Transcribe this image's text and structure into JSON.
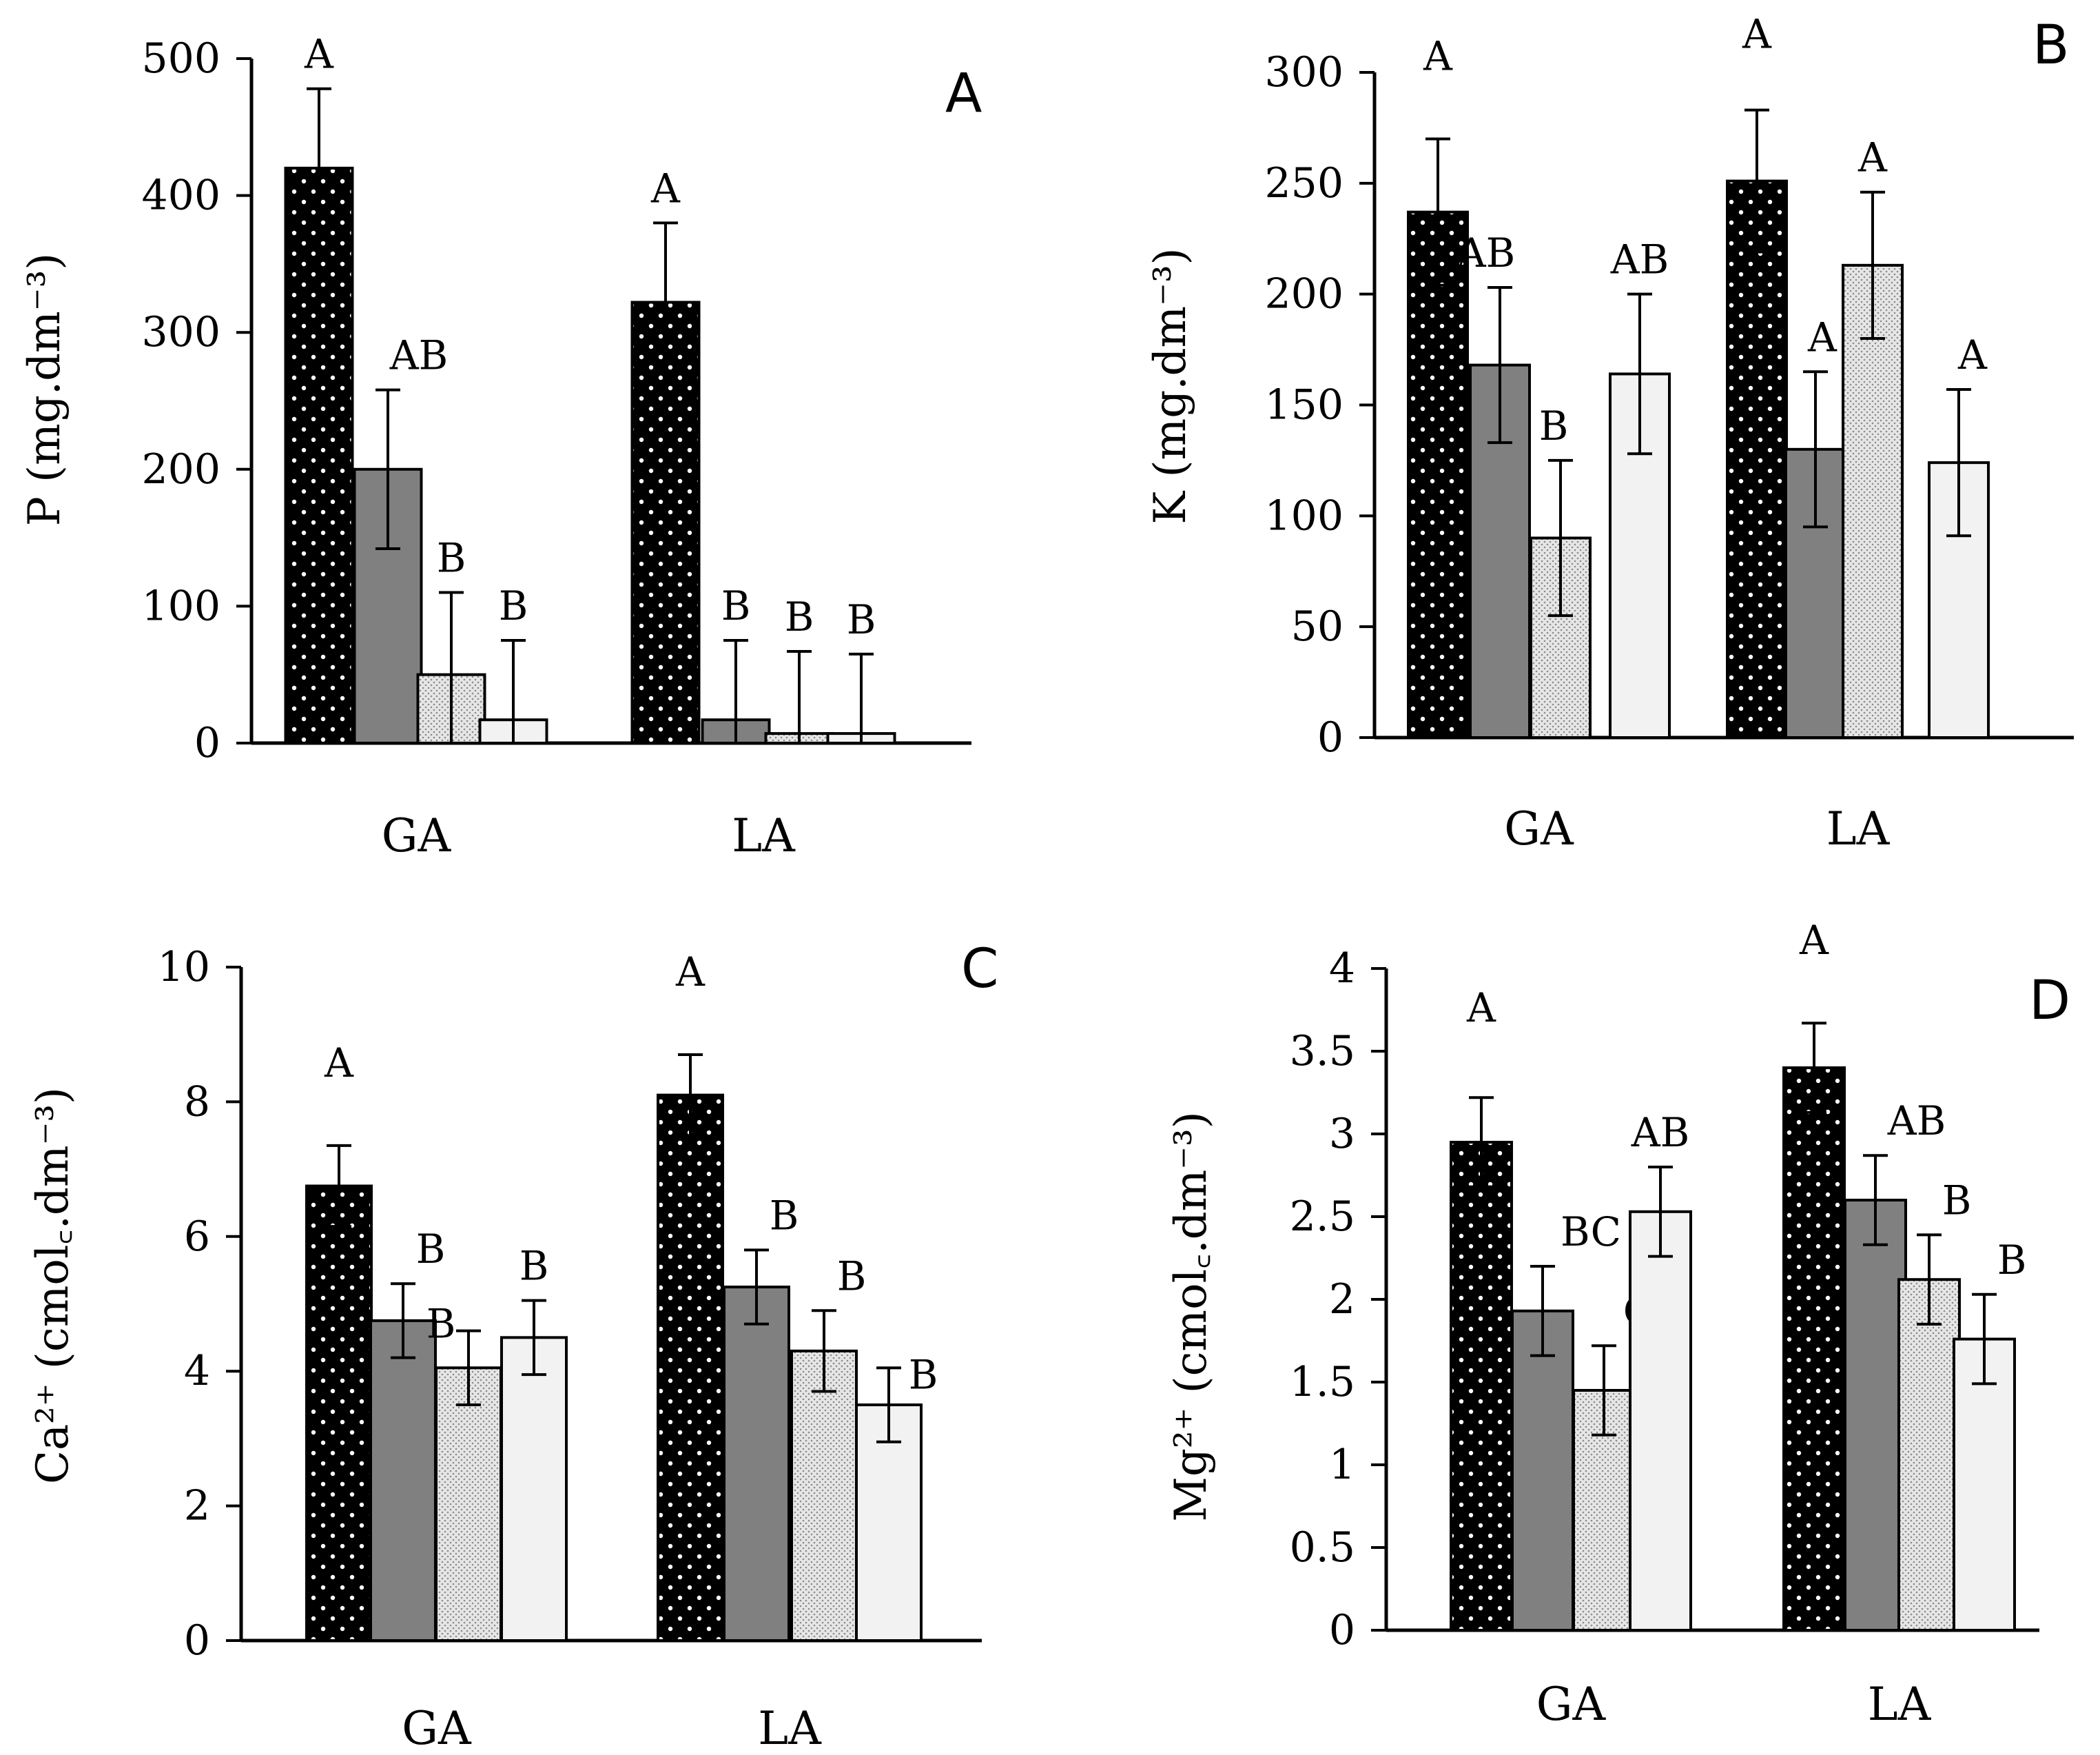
{
  "colors": {
    "series": [
      "#000000",
      "#808080",
      "#e6e6e6",
      "#f2f2f2"
    ],
    "dots": "#ffffff",
    "hatch": "#8a8a8a",
    "axis": "#000000"
  },
  "chart_data": [
    {
      "type": "bar",
      "panel": "A",
      "categories": [
        "GA",
        "LA"
      ],
      "ylabel": "P (mg.dm⁻³)",
      "ylim": [
        0,
        500
      ],
      "yticks": [
        0,
        100,
        200,
        300,
        400,
        500
      ],
      "grid": false,
      "series": [
        {
          "values": [
            420,
            322
          ],
          "errors": [
            58,
            58
          ],
          "letters": [
            "A",
            "A"
          ]
        },
        {
          "values": [
            200,
            17
          ],
          "errors": [
            58,
            58
          ],
          "letters": [
            "AB",
            "B"
          ]
        },
        {
          "values": [
            50,
            7
          ],
          "errors": [
            60,
            60
          ],
          "letters": [
            "B",
            "B"
          ]
        },
        {
          "values": [
            17,
            7
          ],
          "errors": [
            58,
            58
          ],
          "letters": [
            "B",
            "B"
          ]
        }
      ]
    },
    {
      "type": "bar",
      "panel": "B",
      "categories": [
        "GA",
        "LA"
      ],
      "ylabel": "K (mg.dm⁻³)",
      "ylim": [
        0,
        300
      ],
      "yticks": [
        0,
        50,
        100,
        150,
        200,
        250,
        300
      ],
      "grid": false,
      "series": [
        {
          "values": [
            237,
            251
          ],
          "errors": [
            33,
            32
          ],
          "letters": [
            "A",
            "A"
          ]
        },
        {
          "values": [
            168,
            130
          ],
          "errors": [
            35,
            35
          ],
          "letters": [
            "AB",
            "A"
          ]
        },
        {
          "values": [
            90,
            213
          ],
          "errors": [
            35,
            33
          ],
          "letters": [
            "B",
            "A"
          ]
        },
        {
          "values": [
            164,
            124
          ],
          "errors": [
            36,
            33
          ],
          "letters": [
            "AB",
            "A"
          ]
        }
      ]
    },
    {
      "type": "bar",
      "panel": "C",
      "categories": [
        "GA",
        "LA"
      ],
      "ylabel": "Ca²⁺ (cmol꜀.dm⁻³)",
      "ylim": [
        0,
        10
      ],
      "yticks": [
        0,
        2,
        4,
        6,
        8,
        10
      ],
      "grid": false,
      "series": [
        {
          "values": [
            6.75,
            8.1
          ],
          "errors": [
            0.6,
            0.6
          ],
          "letters": [
            "A",
            "A"
          ]
        },
        {
          "values": [
            4.75,
            5.25
          ],
          "errors": [
            0.55,
            0.55
          ],
          "letters": [
            "B",
            "B"
          ]
        },
        {
          "values": [
            4.05,
            4.3
          ],
          "errors": [
            0.55,
            0.6
          ],
          "letters": [
            "B",
            "B"
          ]
        },
        {
          "values": [
            4.5,
            3.5
          ],
          "errors": [
            0.55,
            0.55
          ],
          "letters": [
            "B",
            "B"
          ]
        }
      ]
    },
    {
      "type": "bar",
      "panel": "D",
      "categories": [
        "GA",
        "LA"
      ],
      "ylabel": "Mg²⁺ (cmol꜀.dm⁻³)",
      "ylim": [
        0,
        4
      ],
      "yticks": [
        0,
        0.5,
        1,
        1.5,
        2,
        2.5,
        3,
        3.5,
        4
      ],
      "grid": false,
      "series": [
        {
          "values": [
            2.95,
            3.4
          ],
          "errors": [
            0.27,
            0.27
          ],
          "letters": [
            "A",
            "A"
          ]
        },
        {
          "values": [
            1.93,
            2.6
          ],
          "errors": [
            0.27,
            0.27
          ],
          "letters": [
            "BC",
            "AB"
          ]
        },
        {
          "values": [
            1.45,
            2.12
          ],
          "errors": [
            0.27,
            0.27
          ],
          "letters": [
            "C",
            "B"
          ]
        },
        {
          "values": [
            2.53,
            1.76
          ],
          "errors": [
            0.27,
            0.27
          ],
          "letters": [
            "AB",
            "B"
          ]
        }
      ]
    }
  ]
}
